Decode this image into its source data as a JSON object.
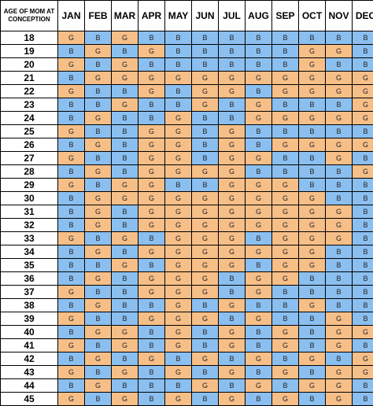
{
  "header": {
    "age_label": "AGE OF MOM AT CONCEPTION",
    "months": [
      "JAN",
      "FEB",
      "MAR",
      "APR",
      "MAY",
      "JUN",
      "JUL",
      "AUG",
      "SEP",
      "OCT",
      "NOV",
      "DEC"
    ]
  },
  "colors": {
    "girl": "#f7bf88",
    "boy": "#8bbff0"
  },
  "rows": [
    {
      "age": "18",
      "cells": [
        "G",
        "B",
        "G",
        "B",
        "B",
        "B",
        "B",
        "B",
        "B",
        "B",
        "B",
        "B"
      ]
    },
    {
      "age": "19",
      "cells": [
        "B",
        "G",
        "B",
        "G",
        "B",
        "B",
        "B",
        "B",
        "B",
        "G",
        "G",
        "B"
      ]
    },
    {
      "age": "20",
      "cells": [
        "G",
        "B",
        "G",
        "B",
        "B",
        "B",
        "B",
        "B",
        "B",
        "G",
        "B",
        "B"
      ]
    },
    {
      "age": "21",
      "cells": [
        "B",
        "G",
        "G",
        "G",
        "G",
        "G",
        "G",
        "G",
        "G",
        "G",
        "G",
        "G"
      ]
    },
    {
      "age": "22",
      "cells": [
        "G",
        "B",
        "B",
        "G",
        "B",
        "G",
        "G",
        "B",
        "G",
        "G",
        "G",
        "G"
      ]
    },
    {
      "age": "23",
      "cells": [
        "B",
        "B",
        "G",
        "B",
        "B",
        "G",
        "B",
        "G",
        "B",
        "B",
        "B",
        "G"
      ]
    },
    {
      "age": "24",
      "cells": [
        "B",
        "G",
        "B",
        "B",
        "G",
        "B",
        "B",
        "G",
        "G",
        "G",
        "G",
        "G"
      ]
    },
    {
      "age": "25",
      "cells": [
        "G",
        "B",
        "B",
        "G",
        "G",
        "B",
        "G",
        "B",
        "B",
        "B",
        "B",
        "B"
      ]
    },
    {
      "age": "26",
      "cells": [
        "B",
        "G",
        "B",
        "G",
        "G",
        "B",
        "G",
        "B",
        "G",
        "G",
        "G",
        "G"
      ]
    },
    {
      "age": "27",
      "cells": [
        "G",
        "B",
        "B",
        "G",
        "G",
        "B",
        "G",
        "G",
        "B",
        "B",
        "G",
        "B"
      ]
    },
    {
      "age": "28",
      "cells": [
        "B",
        "G",
        "B",
        "G",
        "G",
        "G",
        "G",
        "B",
        "B",
        "B",
        "B",
        "G"
      ]
    },
    {
      "age": "29",
      "cells": [
        "G",
        "B",
        "G",
        "G",
        "B",
        "B",
        "G",
        "G",
        "G",
        "B",
        "B",
        "B"
      ]
    },
    {
      "age": "30",
      "cells": [
        "B",
        "G",
        "G",
        "G",
        "G",
        "G",
        "G",
        "G",
        "G",
        "G",
        "B",
        "B"
      ]
    },
    {
      "age": "31",
      "cells": [
        "B",
        "G",
        "B",
        "G",
        "G",
        "G",
        "G",
        "G",
        "G",
        "G",
        "G",
        "B"
      ]
    },
    {
      "age": "32",
      "cells": [
        "B",
        "G",
        "B",
        "G",
        "G",
        "G",
        "G",
        "G",
        "G",
        "G",
        "G",
        "B"
      ]
    },
    {
      "age": "33",
      "cells": [
        "G",
        "B",
        "G",
        "B",
        "G",
        "G",
        "G",
        "B",
        "G",
        "G",
        "G",
        "B"
      ]
    },
    {
      "age": "34",
      "cells": [
        "B",
        "G",
        "B",
        "G",
        "G",
        "G",
        "G",
        "G",
        "G",
        "G",
        "B",
        "B"
      ]
    },
    {
      "age": "35",
      "cells": [
        "B",
        "B",
        "G",
        "B",
        "G",
        "G",
        "G",
        "B",
        "G",
        "G",
        "B",
        "B"
      ]
    },
    {
      "age": "36",
      "cells": [
        "B",
        "G",
        "B",
        "G",
        "G",
        "G",
        "B",
        "G",
        "G",
        "B",
        "B",
        "B"
      ]
    },
    {
      "age": "37",
      "cells": [
        "G",
        "B",
        "B",
        "G",
        "G",
        "G",
        "B",
        "G",
        "B",
        "B",
        "B",
        "B"
      ]
    },
    {
      "age": "38",
      "cells": [
        "B",
        "G",
        "B",
        "B",
        "G",
        "B",
        "G",
        "B",
        "B",
        "G",
        "B",
        "B"
      ]
    },
    {
      "age": "39",
      "cells": [
        "G",
        "B",
        "B",
        "G",
        "G",
        "G",
        "B",
        "G",
        "B",
        "B",
        "G",
        "B"
      ]
    },
    {
      "age": "40",
      "cells": [
        "B",
        "G",
        "G",
        "B",
        "G",
        "B",
        "G",
        "B",
        "G",
        "B",
        "G",
        "G"
      ]
    },
    {
      "age": "41",
      "cells": [
        "G",
        "B",
        "G",
        "B",
        "G",
        "B",
        "G",
        "B",
        "G",
        "B",
        "G",
        "B"
      ]
    },
    {
      "age": "42",
      "cells": [
        "B",
        "G",
        "B",
        "G",
        "B",
        "G",
        "B",
        "G",
        "B",
        "G",
        "B",
        "G"
      ]
    },
    {
      "age": "43",
      "cells": [
        "G",
        "B",
        "G",
        "B",
        "G",
        "B",
        "G",
        "B",
        "G",
        "B",
        "G",
        "G"
      ]
    },
    {
      "age": "44",
      "cells": [
        "B",
        "G",
        "B",
        "B",
        "B",
        "G",
        "B",
        "G",
        "B",
        "G",
        "G",
        "B"
      ]
    },
    {
      "age": "45",
      "cells": [
        "G",
        "B",
        "G",
        "B",
        "G",
        "B",
        "G",
        "B",
        "G",
        "B",
        "G",
        "B"
      ]
    }
  ]
}
